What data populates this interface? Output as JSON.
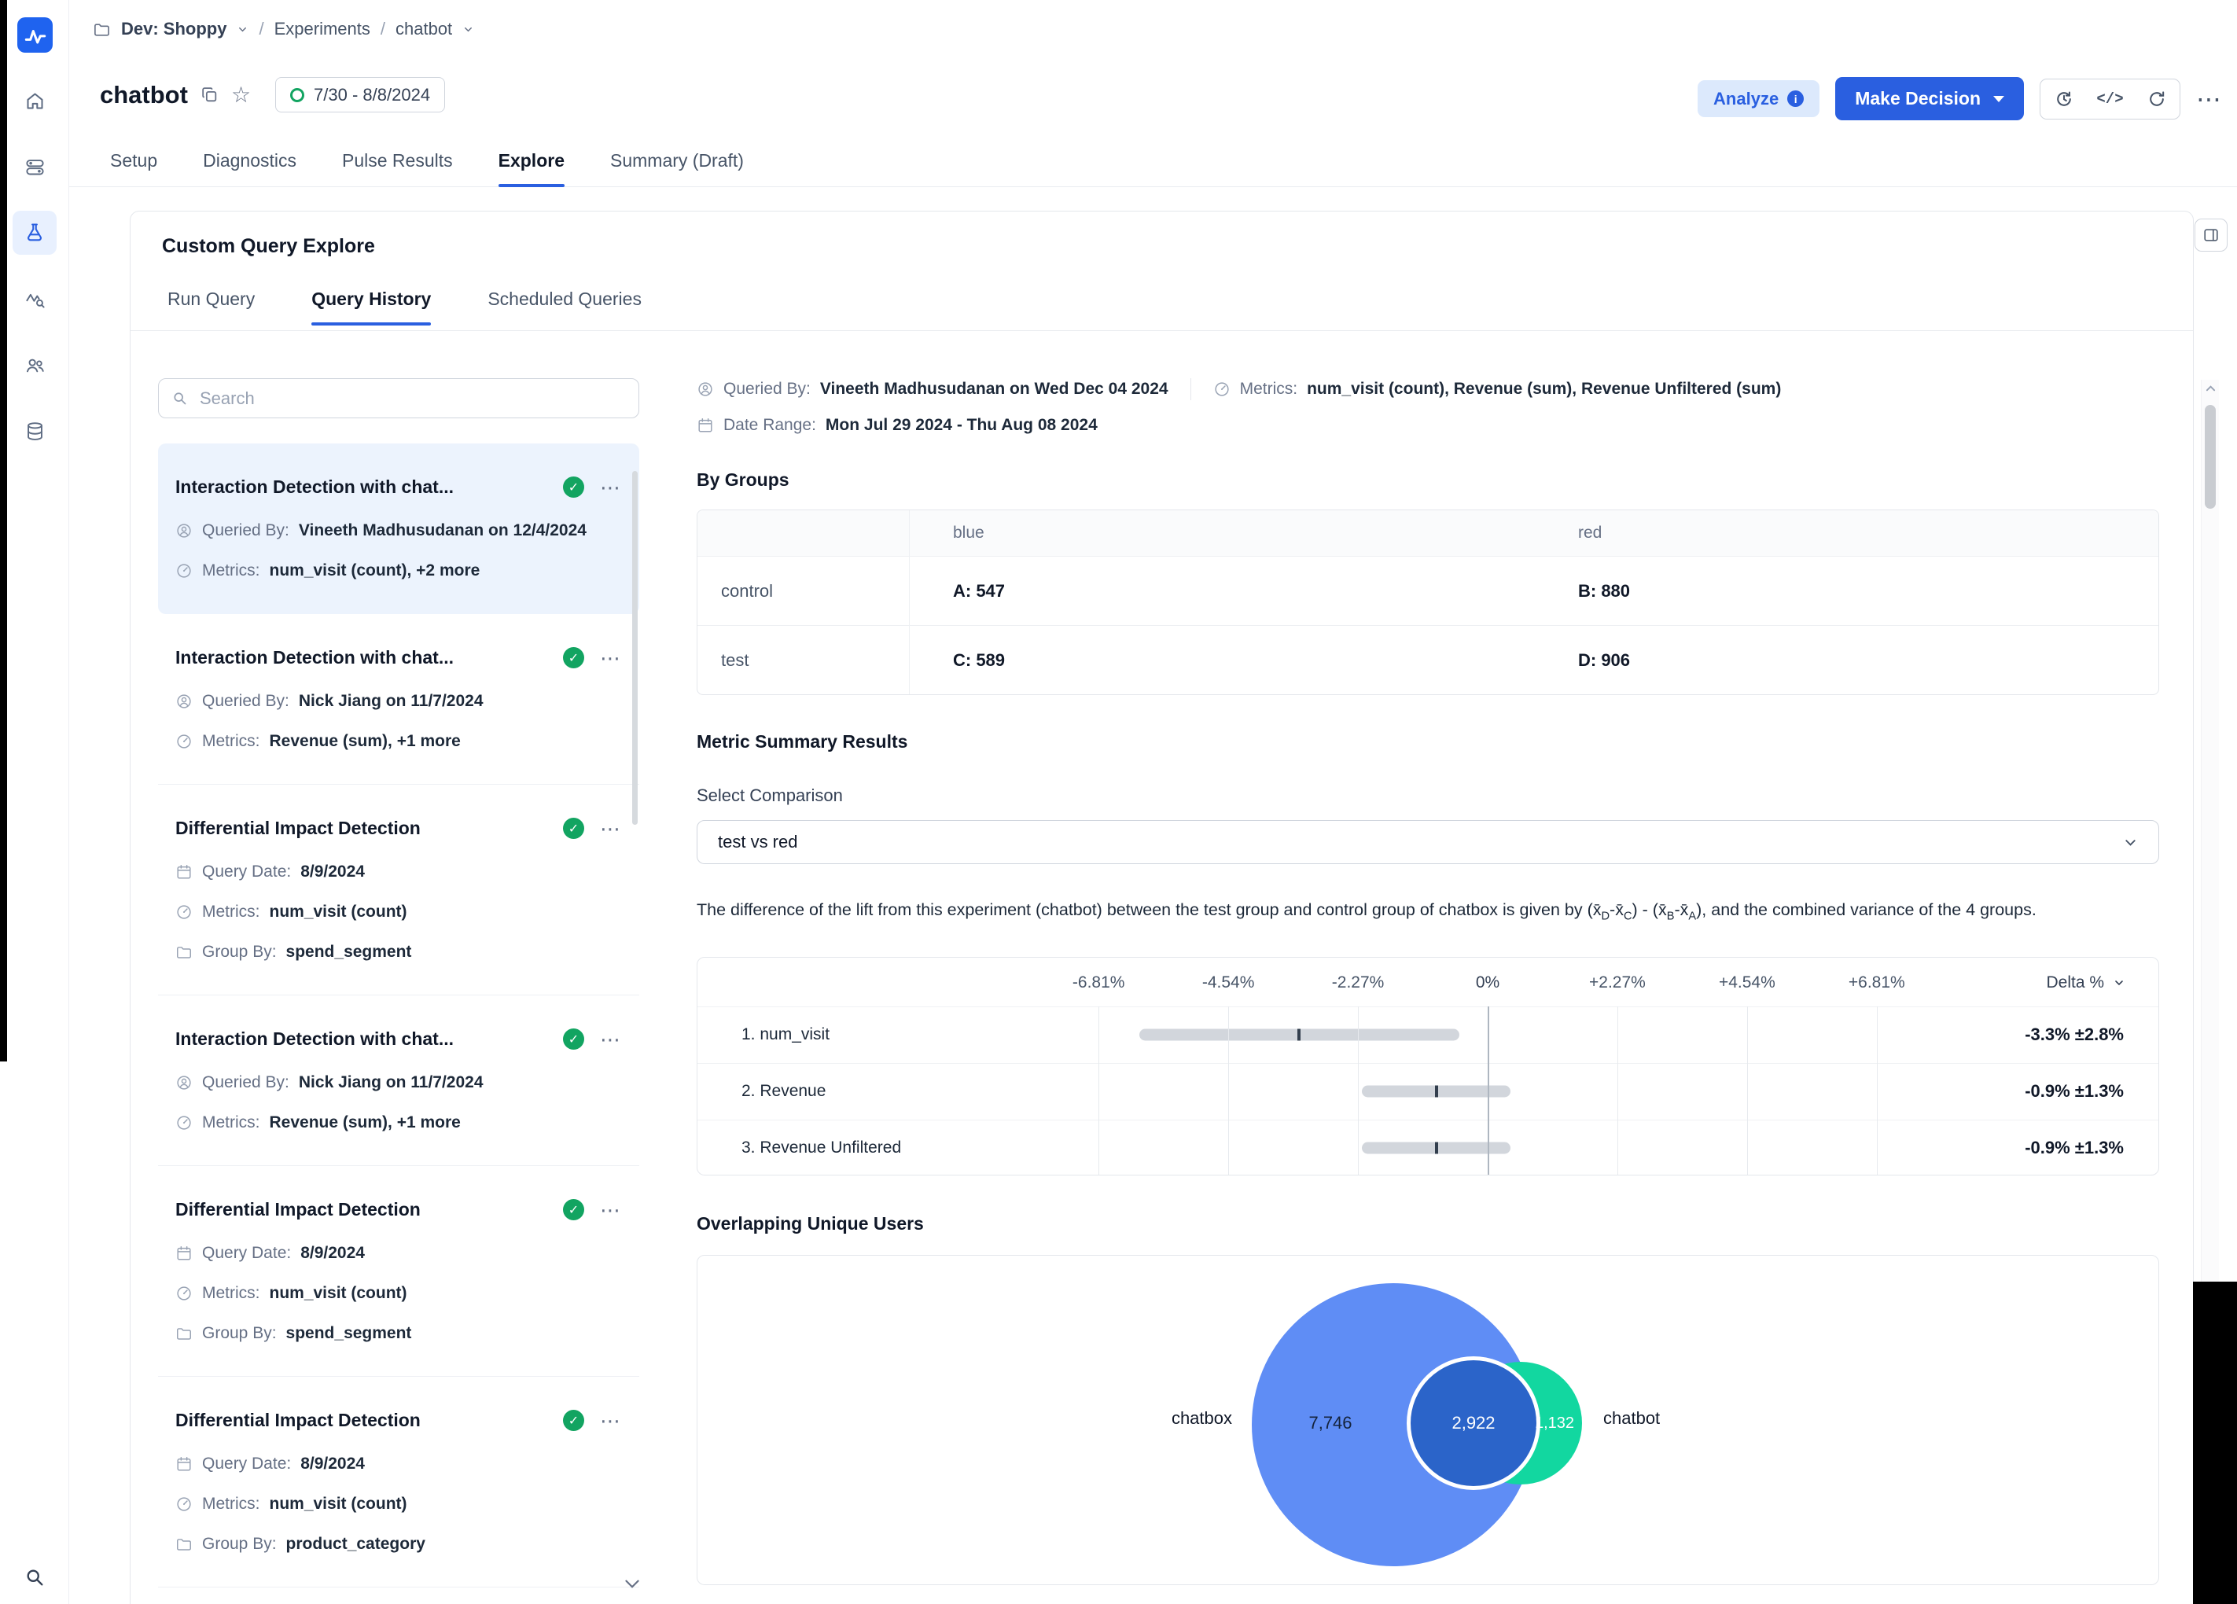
{
  "colors": {
    "primary": "#2a5fe0",
    "success": "#12a461",
    "selected_item_bg": "#ecf3fd"
  },
  "icons": {
    "sidebar": [
      "logo-pulse-icon",
      "home-icon",
      "feature-gates-icon",
      "experiments-flask-icon",
      "pulse-chart-icon",
      "users-icon",
      "data-icon",
      "search-icon"
    ],
    "header": [
      "folder-icon",
      "copy-icon",
      "star-icon",
      "info-icon",
      "history-icon",
      "code-icon",
      "refresh-icon",
      "more-icon",
      "collapse-panel-icon"
    ]
  },
  "breadcrumb": {
    "project": "Dev: Shoppy",
    "section": "Experiments",
    "current": "chatbot"
  },
  "header": {
    "title": "chatbot",
    "date_badge": "7/30 - 8/8/2024",
    "analyze": "Analyze",
    "make_decision": "Make Decision"
  },
  "tabs": {
    "items": [
      "Setup",
      "Diagnostics",
      "Pulse Results",
      "Explore",
      "Summary (Draft)"
    ],
    "active": "Explore"
  },
  "explore": {
    "title": "Custom Query Explore",
    "subtabs": [
      "Run Query",
      "Query History",
      "Scheduled Queries"
    ],
    "active_subtab": "Query History",
    "search_placeholder": "Search"
  },
  "query_history": {
    "items": [
      {
        "title": "Interaction Detection with chat...",
        "selected": true,
        "status": "success",
        "rows": [
          {
            "icon": "user",
            "label": "Queried By:",
            "value": "Vineeth Madhusudanan on 12/4/2024"
          },
          {
            "icon": "gauge",
            "label": "Metrics:",
            "value": "num_visit (count), +2 more"
          }
        ]
      },
      {
        "title": "Interaction Detection with chat...",
        "selected": false,
        "status": "success",
        "rows": [
          {
            "icon": "user",
            "label": "Queried By:",
            "value": "Nick Jiang on 11/7/2024"
          },
          {
            "icon": "gauge",
            "label": "Metrics:",
            "value": "Revenue (sum), +1 more"
          }
        ]
      },
      {
        "title": "Differential Impact Detection",
        "selected": false,
        "status": "success",
        "rows": [
          {
            "icon": "calendar",
            "label": "Query Date:",
            "value": "8/9/2024"
          },
          {
            "icon": "gauge",
            "label": "Metrics:",
            "value": "num_visit (count)"
          },
          {
            "icon": "folder",
            "label": "Group By:",
            "value": "spend_segment"
          }
        ]
      },
      {
        "title": "Interaction Detection with chat...",
        "selected": false,
        "status": "success",
        "rows": [
          {
            "icon": "user",
            "label": "Queried By:",
            "value": "Nick Jiang on 11/7/2024"
          },
          {
            "icon": "gauge",
            "label": "Metrics:",
            "value": "Revenue (sum), +1 more"
          }
        ]
      },
      {
        "title": "Differential Impact Detection",
        "selected": false,
        "status": "success",
        "rows": [
          {
            "icon": "calendar",
            "label": "Query Date:",
            "value": "8/9/2024"
          },
          {
            "icon": "gauge",
            "label": "Metrics:",
            "value": "num_visit (count)"
          },
          {
            "icon": "folder",
            "label": "Group By:",
            "value": "spend_segment"
          }
        ]
      },
      {
        "title": "Differential Impact Detection",
        "selected": false,
        "status": "success",
        "rows": [
          {
            "icon": "calendar",
            "label": "Query Date:",
            "value": "8/9/2024"
          },
          {
            "icon": "gauge",
            "label": "Metrics:",
            "value": "num_visit (count)"
          },
          {
            "icon": "folder",
            "label": "Group By:",
            "value": "product_category"
          }
        ]
      }
    ]
  },
  "detail": {
    "queried_by_label": "Queried By:",
    "queried_by": "Vineeth Madhusudanan on Wed Dec 04 2024",
    "metrics_label": "Metrics:",
    "metrics": "num_visit (count), Revenue (sum), Revenue Unfiltered (sum)",
    "date_range_label": "Date Range:",
    "date_range": "Mon Jul 29 2024 - Thu Aug 08 2024",
    "by_groups_title": "By Groups",
    "groups": {
      "headers": [
        "blue",
        "red"
      ],
      "rows": [
        {
          "label": "control",
          "a": "A: 547",
          "b": "B: 880"
        },
        {
          "label": "test",
          "a": "C: 589",
          "b": "D: 906"
        }
      ]
    },
    "metric_summary_title": "Metric Summary Results",
    "select_comparison_label": "Select Comparison",
    "comparison_value": "test vs red",
    "description": {
      "p1": "The difference of the lift from this experiment (chatbot) between the test group and control group of chatbox is given by (x̄",
      "s1": "D",
      "p2": "-x̄",
      "s2": "C",
      "p3": ") - (x̄",
      "s3": "B",
      "p4": "-x̄",
      "s4": "A",
      "p5": "), and the combined variance of the 4 groups."
    }
  },
  "chart_data": [
    {
      "type": "forest",
      "title": "Metric Summary Results",
      "comparison": "test vs red",
      "sort_label": "Delta %",
      "tick_values": [
        -6.81,
        -4.54,
        -2.27,
        0,
        2.27,
        4.54,
        6.81
      ],
      "tick_labels": [
        "-6.81%",
        "-4.54%",
        "-2.27%",
        "0%",
        "+2.27%",
        "+4.54%",
        "+6.81%"
      ],
      "xlim": [
        -7.57,
        7.57
      ],
      "rows": [
        {
          "label": "1. num_visit",
          "delta_pct": -3.3,
          "moe_pct": 2.8,
          "display": "-3.3% ±2.8%"
        },
        {
          "label": "2. Revenue",
          "delta_pct": -0.9,
          "moe_pct": 1.3,
          "display": "-0.9% ±1.3%"
        },
        {
          "label": "3. Revenue Unfiltered",
          "delta_pct": -0.9,
          "moe_pct": 1.3,
          "display": "-0.9% ±1.3%"
        }
      ]
    },
    {
      "type": "venn",
      "title": "Overlapping Unique Users",
      "sets": [
        {
          "label": "chatbox",
          "unique": 7746,
          "display": "7,746",
          "color": "#5f8df5"
        },
        {
          "label": "chatbot",
          "unique": 1132,
          "display": "1,132",
          "color": "#12d7a0"
        }
      ],
      "overlap": {
        "value": 2922,
        "display": "2,922",
        "color": "#2b64c9"
      }
    }
  ]
}
